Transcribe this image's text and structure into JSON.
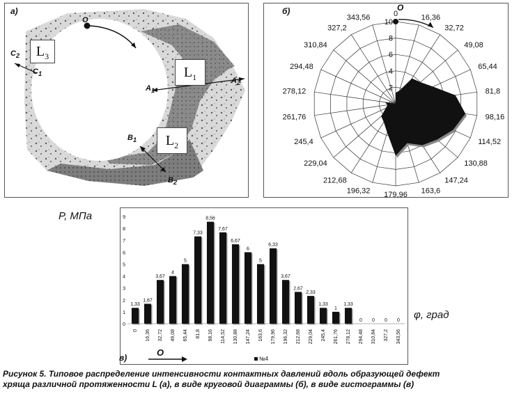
{
  "panel_a": {
    "label": "а)",
    "region_labels": [
      "L",
      "L",
      "L"
    ],
    "region_subs": [
      "3",
      "1",
      "2"
    ],
    "points": [
      {
        "name": "O",
        "sub": ""
      },
      {
        "name": "C",
        "sub": "2"
      },
      {
        "name": "C",
        "sub": "1"
      },
      {
        "name": "A",
        "sub": "1"
      },
      {
        "name": "A",
        "sub": "2"
      },
      {
        "name": "B",
        "sub": "1"
      },
      {
        "name": "B",
        "sub": "2"
      }
    ]
  },
  "panel_b": {
    "label": "б)",
    "origin_label": "O"
  },
  "panel_c": {
    "label": "в)",
    "origin_label": "O",
    "y_title": "P, МПа",
    "x_title": "φ, град",
    "legend": "№4"
  },
  "caption": {
    "line1": "Рисунок 5. Типовое распределение интенсивности контактных давлений вдоль образующей дефект",
    "line2": "хряща различной протяженности L (а), в виде круговой диаграммы (б), в виде гистограммы (в)"
  },
  "chart_data": [
    {
      "type": "radar",
      "categories": [
        "0",
        "16,36",
        "32,72",
        "49,08",
        "65,44",
        "81,8",
        "98,16",
        "114,52",
        "130,88",
        "147,24",
        "163,6",
        "179,96",
        "196,32",
        "212,68",
        "229,04",
        "245,4",
        "261,76",
        "278,12",
        "294,48",
        "310,84",
        "327,2",
        "343,56"
      ],
      "values": [
        1.33,
        1.67,
        3.67,
        4,
        5,
        7.33,
        8.56,
        7.67,
        6.67,
        6,
        5,
        6.33,
        3.67,
        2.67,
        2.33,
        1.33,
        1,
        1.33,
        0,
        0,
        0,
        0
      ],
      "radial_ticks": [
        "0",
        "2",
        "4",
        "6",
        "8",
        "10"
      ],
      "rlim": [
        0,
        10
      ]
    },
    {
      "type": "bar",
      "categories": [
        "0",
        "16,36",
        "32,72",
        "49,08",
        "65,44",
        "81,8",
        "98,16",
        "114,52",
        "130,88",
        "147,24",
        "163,6",
        "179,96",
        "196,32",
        "212,68",
        "229,04",
        "245,4",
        "261,76",
        "278,12",
        "294,48",
        "310,84",
        "327,2",
        "343,56"
      ],
      "values": [
        1.33,
        1.67,
        3.67,
        4,
        5,
        7.33,
        8.56,
        7.67,
        6.67,
        6,
        5,
        6.33,
        3.67,
        2.67,
        2.33,
        1.33,
        1,
        1.33,
        0,
        0,
        0,
        0
      ],
      "data_labels": [
        "1,33",
        "1,67",
        "3,67",
        "4",
        "5",
        "7,33",
        "8,56",
        "7,67",
        "6,67",
        "6",
        "5",
        "6,33",
        "3,67",
        "2,67",
        "2,33",
        "1,33",
        "1",
        "1,33",
        "0",
        "0",
        "0",
        "0"
      ],
      "y_ticks": [
        "0",
        "1",
        "2",
        "3",
        "4",
        "5",
        "6",
        "7",
        "8",
        "9"
      ],
      "ylim": [
        0,
        9
      ],
      "series": [
        {
          "name": "№4",
          "values": [
            1.33,
            1.67,
            3.67,
            4,
            5,
            7.33,
            8.56,
            7.67,
            6.67,
            6,
            5,
            6.33,
            3.67,
            2.67,
            2.33,
            1.33,
            1,
            1.33,
            0,
            0,
            0,
            0
          ]
        }
      ]
    }
  ]
}
